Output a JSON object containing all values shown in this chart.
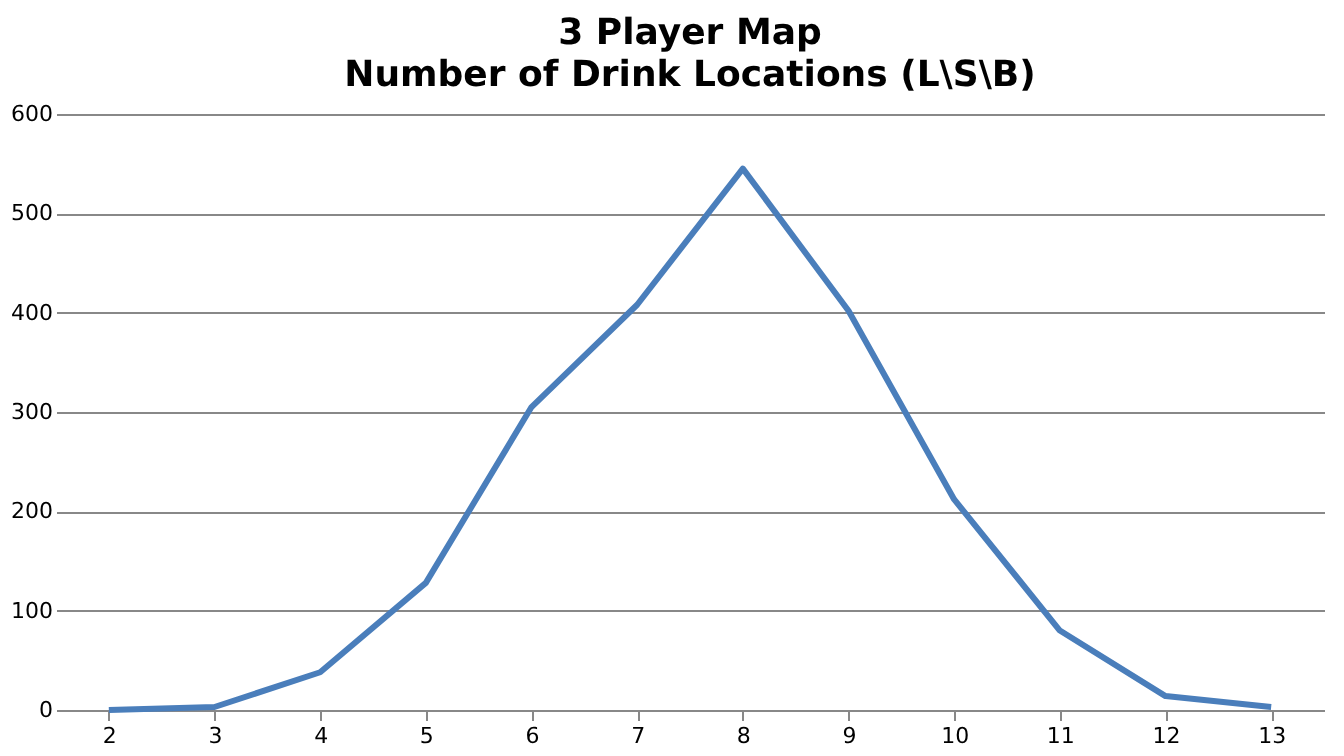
{
  "chart_data": {
    "type": "line",
    "title": "3 Player Map",
    "subtitle": "Number of Drink Locations (L\\S\\B)",
    "categories": [
      "2",
      "3",
      "4",
      "5",
      "6",
      "7",
      "8",
      "9",
      "10",
      "11",
      "12",
      "13"
    ],
    "series": [
      {
        "color": "#4a7ebb",
        "values": [
          0,
          3,
          38,
          128,
          305,
          408,
          545,
          402,
          212,
          80,
          14,
          3
        ]
      }
    ],
    "ylim": [
      0,
      600
    ],
    "yticks": [
      0,
      100,
      200,
      300,
      400,
      500,
      600
    ],
    "grid": "y",
    "marker": "none",
    "line_style": "solid"
  }
}
